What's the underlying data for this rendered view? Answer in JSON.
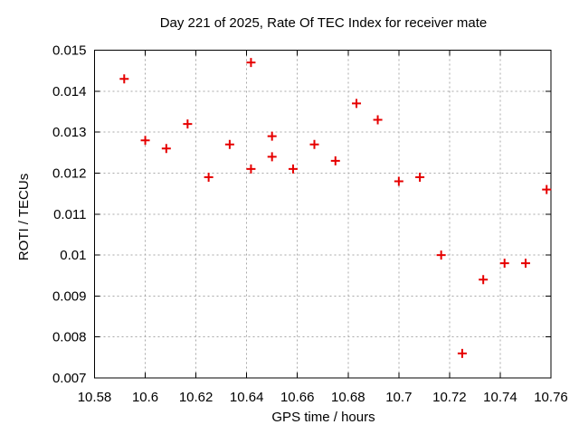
{
  "title": "Day 221 of 2025, Rate Of TEC Index for receiver mate",
  "colors": {
    "background": "#ffffff",
    "border": "#000000",
    "grid": "#a8a8a8",
    "marker": "#e60000",
    "text": "#000000"
  },
  "chart_data": {
    "type": "scatter",
    "title": "Day 221 of 2025, Rate Of TEC Index for receiver mate",
    "xlabel": "GPS time / hours",
    "ylabel": "ROTI / TECUs",
    "xlim": [
      10.58,
      10.76
    ],
    "ylim": [
      0.007,
      0.015
    ],
    "grid": true,
    "legend": "none",
    "xticks": [
      {
        "value": 10.58,
        "label": "10.58"
      },
      {
        "value": 10.6,
        "label": "10.6"
      },
      {
        "value": 10.62,
        "label": "10.62"
      },
      {
        "value": 10.64,
        "label": "10.64"
      },
      {
        "value": 10.66,
        "label": "10.66"
      },
      {
        "value": 10.68,
        "label": "10.68"
      },
      {
        "value": 10.7,
        "label": "10.7"
      },
      {
        "value": 10.72,
        "label": "10.72"
      },
      {
        "value": 10.74,
        "label": "10.74"
      },
      {
        "value": 10.76,
        "label": "10.76"
      }
    ],
    "yticks": [
      {
        "value": 0.007,
        "label": "0.007"
      },
      {
        "value": 0.008,
        "label": "0.008"
      },
      {
        "value": 0.009,
        "label": "0.009"
      },
      {
        "value": 0.01,
        "label": "0.01"
      },
      {
        "value": 0.011,
        "label": "0.011"
      },
      {
        "value": 0.012,
        "label": "0.012"
      },
      {
        "value": 0.013,
        "label": "0.013"
      },
      {
        "value": 0.014,
        "label": "0.014"
      },
      {
        "value": 0.015,
        "label": "0.015"
      }
    ],
    "series": [
      {
        "marker": "plus",
        "color": "#e60000",
        "points": [
          [
            10.5917,
            0.0143
          ],
          [
            10.6,
            0.0128
          ],
          [
            10.6083,
            0.0126
          ],
          [
            10.6167,
            0.0132
          ],
          [
            10.625,
            0.0119
          ],
          [
            10.6333,
            0.0127
          ],
          [
            10.6417,
            0.0147
          ],
          [
            10.6417,
            0.0121
          ],
          [
            10.65,
            0.0129
          ],
          [
            10.65,
            0.0124
          ],
          [
            10.6583,
            0.0121
          ],
          [
            10.6667,
            0.0127
          ],
          [
            10.675,
            0.0123
          ],
          [
            10.6833,
            0.0137
          ],
          [
            10.6917,
            0.0133
          ],
          [
            10.7,
            0.0118
          ],
          [
            10.7083,
            0.0119
          ],
          [
            10.7167,
            0.01
          ],
          [
            10.725,
            0.0076
          ],
          [
            10.7333,
            0.0094
          ],
          [
            10.7417,
            0.0098
          ],
          [
            10.75,
            0.0098
          ],
          [
            10.7583,
            0.0116
          ]
        ]
      }
    ]
  }
}
